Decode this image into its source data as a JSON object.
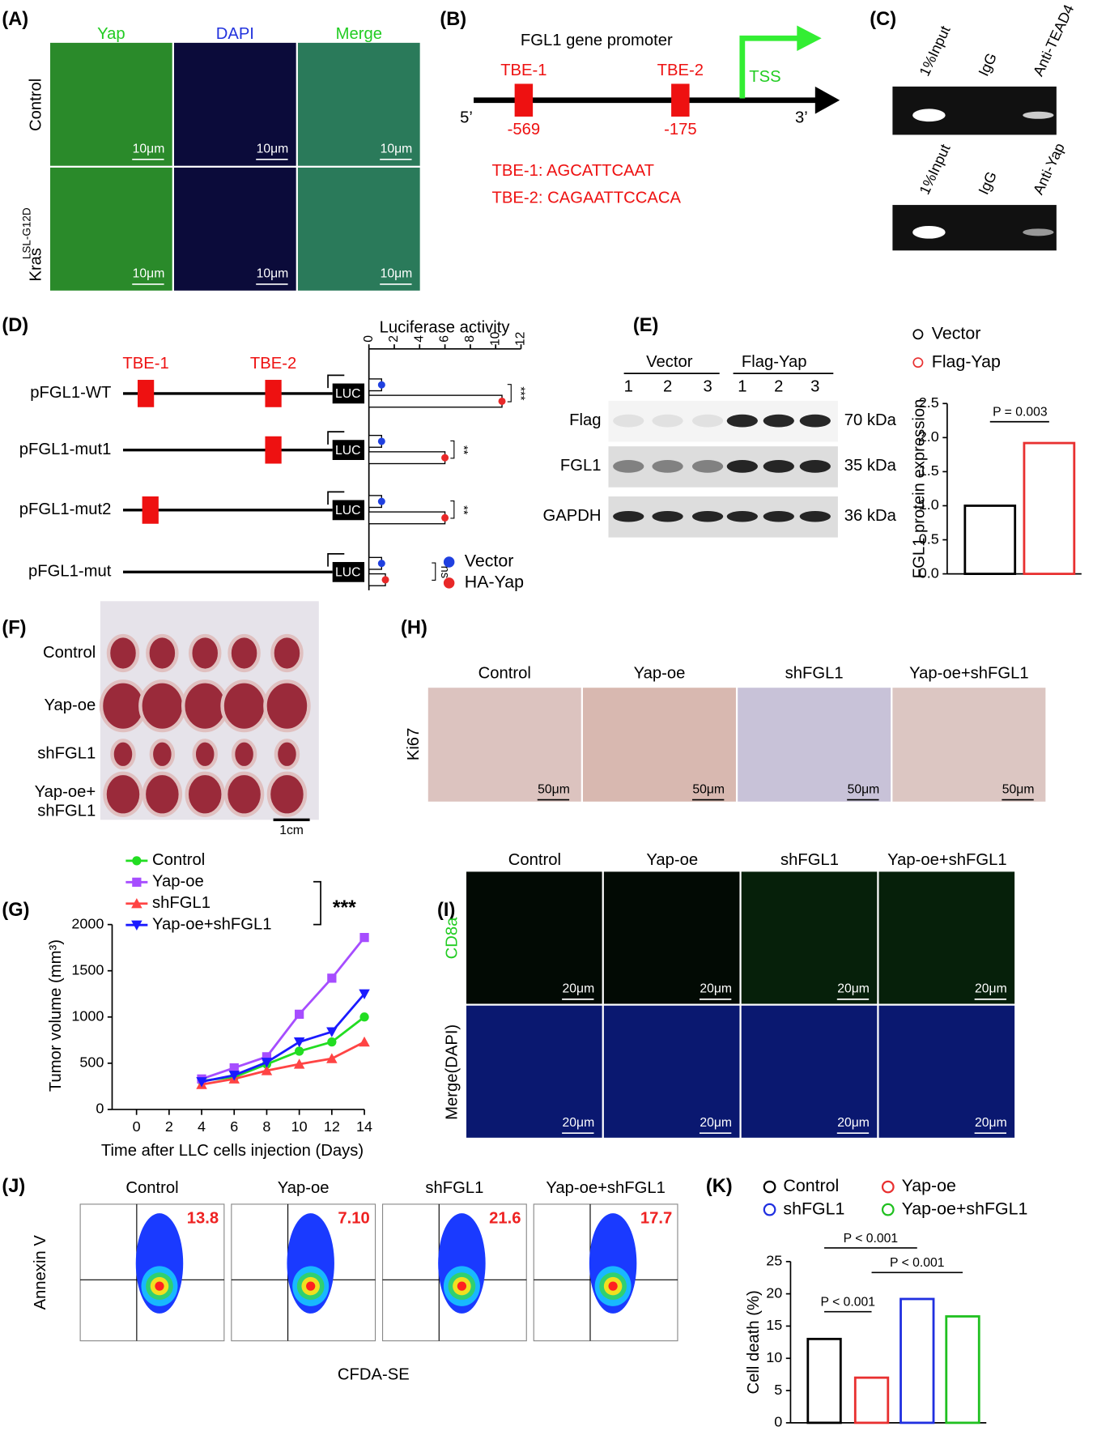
{
  "panels": {
    "A": {
      "label": "(A)",
      "columns": [
        "Yap",
        "DAPI",
        "Merge"
      ],
      "rows": [
        {
          "text": "Control"
        },
        {
          "text": "Kras",
          "sup": "LSL-G12D"
        }
      ],
      "scale_bar": "10μm"
    },
    "B": {
      "label": "(B)",
      "title": "FGL1 gene promoter",
      "sites": [
        {
          "name": "TBE-1",
          "position": "-569"
        },
        {
          "name": "TBE-2",
          "position": "-175"
        }
      ],
      "ends": [
        "5’",
        "3’"
      ],
      "tss": "TSS",
      "sequences": [
        "TBE-1: AGCATTCAAT",
        "TBE-2: CAGAATTCCACA"
      ]
    },
    "C": {
      "label": "(C)",
      "gels": [
        [
          "1%Input",
          "IgG",
          "Anti-TEAD4"
        ],
        [
          "1%Input",
          "IgG",
          "Anti-Yap"
        ]
      ]
    },
    "D": {
      "label": "(D)",
      "elements": [
        "TBE-1",
        "TBE-2"
      ],
      "reporter": "LUC"
    },
    "E": {
      "label": "(E)",
      "groups": [
        "Vector",
        "Flag-Yap"
      ],
      "lanes": [
        "1",
        "2",
        "3",
        "1",
        "2",
        "3"
      ],
      "blots": [
        {
          "name": "Flag",
          "size": "70 kDa"
        },
        {
          "name": "FGL1",
          "size": "35 kDa"
        },
        {
          "name": "GAPDH",
          "size": "36 kDa"
        }
      ]
    },
    "F": {
      "label": "(F)",
      "rows": [
        [
          "Control"
        ],
        [
          "Yap-oe"
        ],
        [
          "shFGL1"
        ],
        [
          "Yap-oe+",
          "shFGL1"
        ]
      ],
      "scale_bar": "1cm"
    },
    "G": {
      "label": "(G)"
    },
    "H": {
      "label": "(H)",
      "columns": [
        "Control",
        "Yap-oe",
        "shFGL1",
        "Yap-oe+shFGL1"
      ],
      "row": "Ki67",
      "scale_bar": "50μm"
    },
    "I": {
      "label": "(I)",
      "columns": [
        "Control",
        "Yap-oe",
        "shFGL1",
        "Yap-oe+shFGL1"
      ],
      "rows": [
        "CD8a",
        "Merge(DAPI)"
      ],
      "scale_bar": "20μm"
    },
    "J": {
      "label": "(J)",
      "columns": [
        "Control",
        "Yap-oe",
        "shFGL1",
        "Yap-oe+shFGL1"
      ],
      "quadrant_values": [
        "13.8",
        "7.10",
        "21.6",
        "17.7"
      ],
      "xlabel": "CFDA-SE",
      "ylabel": "Annexin V"
    },
    "K": {
      "label": "(K)"
    }
  },
  "chart_data": [
    {
      "type": "hbar",
      "title": "Luciferase activity",
      "categories": [
        "pFGL1-WT",
        "pFGL1-mut1",
        "pFGL1-mut2",
        "pFGL1-mut"
      ],
      "series": [
        {
          "name": "Vector",
          "color": "#2040e0",
          "values": [
            1,
            1,
            1,
            1
          ]
        },
        {
          "name": "HA-Yap",
          "color": "#e82828",
          "values": [
            10.5,
            6,
            6,
            1.3
          ]
        }
      ],
      "xlim": [
        0,
        12
      ],
      "xticks": [
        0,
        2,
        4,
        6,
        8,
        10,
        12
      ],
      "annotations": [
        "***",
        "**",
        "**",
        "ns"
      ]
    },
    {
      "type": "bar",
      "ylabel": "FGL1 protein expression",
      "categories": [
        "Vector",
        "Flag-Yap"
      ],
      "values": [
        1,
        1.92
      ],
      "colors": [
        "#000000",
        "#e83030"
      ],
      "ylim": [
        0,
        2.5
      ],
      "yticks": [
        {
          "value": 0,
          "label": "0.0"
        },
        0.5,
        {
          "value": 1,
          "label": "1.0"
        },
        1.5,
        {
          "value": 2,
          "label": "2.0"
        },
        2.5
      ],
      "annotations": [
        "P = 0.003"
      ]
    },
    {
      "type": "line",
      "xlabel": "Time after LLC cells injection (Days)",
      "ylabel": "Tumor volume (mm³)",
      "x": [
        4,
        6,
        8,
        10,
        12,
        14
      ],
      "series": [
        {
          "name": "Control",
          "color": "#22dd22",
          "values": [
            310,
            350,
            490,
            630,
            730,
            1000
          ]
        },
        {
          "name": "Yap-oe",
          "color": "#a64dff",
          "values": [
            330,
            450,
            570,
            1030,
            1420,
            1860
          ]
        },
        {
          "name": "shFGL1",
          "color": "#ff4444",
          "values": [
            270,
            330,
            420,
            490,
            550,
            730
          ]
        },
        {
          "name": "Yap-oe+shFGL1",
          "color": "#1a1aff",
          "values": [
            300,
            370,
            510,
            730,
            840,
            1250
          ]
        }
      ],
      "xlim": [
        -1.5,
        14
      ],
      "xticks": [
        0,
        2,
        4,
        6,
        8,
        10,
        12,
        14
      ],
      "ylim": [
        0,
        2000
      ],
      "yticks": [
        0,
        500,
        1000,
        1500,
        2000
      ],
      "annotations": [
        "***"
      ]
    },
    {
      "type": "bar",
      "ylabel": "Cell death (%)",
      "categories": [
        "Control",
        "Yap-oe",
        "shFGL1",
        "Yap-oe+shFGL1"
      ],
      "values": [
        13,
        7,
        19.2,
        16.5
      ],
      "colors": [
        "#000000",
        "#e83030",
        "#2030e0",
        "#20c020"
      ],
      "ylim": [
        0,
        25
      ],
      "yticks": [
        0,
        5,
        10,
        15,
        20,
        25
      ],
      "annotations": [
        "P < 0.001",
        "P < 0.001",
        "P < 0.001"
      ]
    }
  ]
}
